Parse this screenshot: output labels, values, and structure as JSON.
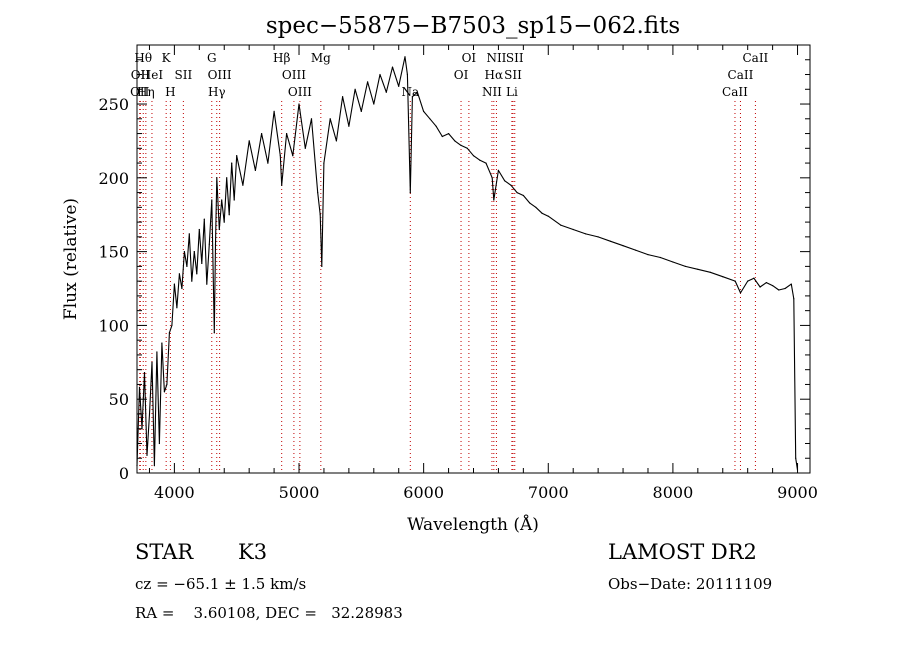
{
  "chart_data": {
    "type": "line",
    "title": "spec−55875−B7503_sp15−062.fits",
    "xlabel": "Wavelength (Å)",
    "ylabel": "Flux (relative)",
    "xlim": [
      3700,
      9100
    ],
    "ylim": [
      0,
      290
    ],
    "x_ticks": [
      4000,
      5000,
      6000,
      7000,
      8000,
      9000
    ],
    "y_ticks": [
      0,
      50,
      100,
      150,
      200,
      250
    ],
    "grid": false,
    "series": [
      {
        "color": "#000000",
        "x": [
          3700,
          3720,
          3740,
          3760,
          3780,
          3800,
          3820,
          3840,
          3860,
          3880,
          3900,
          3920,
          3940,
          3960,
          3980,
          4000,
          4020,
          4040,
          4060,
          4080,
          4100,
          4120,
          4140,
          4160,
          4180,
          4200,
          4220,
          4240,
          4260,
          4280,
          4300,
          4320,
          4330,
          4340,
          4360,
          4380,
          4400,
          4420,
          4440,
          4460,
          4480,
          4500,
          4550,
          4600,
          4650,
          4700,
          4750,
          4800,
          4850,
          4861,
          4900,
          4950,
          5000,
          5050,
          5100,
          5150,
          5170,
          5183,
          5200,
          5250,
          5300,
          5350,
          5400,
          5450,
          5500,
          5550,
          5600,
          5650,
          5700,
          5750,
          5800,
          5850,
          5870,
          5893,
          5910,
          5950,
          6000,
          6050,
          6100,
          6150,
          6200,
          6250,
          6300,
          6350,
          6400,
          6450,
          6500,
          6550,
          6563,
          6600,
          6650,
          6700,
          6750,
          6800,
          6850,
          6900,
          6950,
          7000,
          7100,
          7200,
          7300,
          7400,
          7500,
          7600,
          7700,
          7800,
          7900,
          8000,
          8100,
          8200,
          8300,
          8400,
          8500,
          8542,
          8600,
          8650,
          8700,
          8750,
          8800,
          8850,
          8900,
          8950,
          8970,
          8985,
          9000
        ],
        "y": [
          5,
          58,
          30,
          68,
          12,
          40,
          75,
          5,
          82,
          20,
          88,
          55,
          60,
          95,
          100,
          128,
          112,
          135,
          125,
          150,
          140,
          162,
          130,
          150,
          135,
          165,
          142,
          172,
          128,
          155,
          185,
          95,
          155,
          200,
          165,
          185,
          170,
          200,
          175,
          210,
          185,
          215,
          195,
          225,
          205,
          230,
          210,
          245,
          215,
          195,
          230,
          215,
          250,
          220,
          240,
          190,
          175,
          140,
          210,
          240,
          225,
          255,
          235,
          260,
          245,
          265,
          250,
          270,
          258,
          275,
          262,
          282,
          270,
          190,
          255,
          258,
          245,
          240,
          235,
          228,
          230,
          225,
          222,
          220,
          215,
          212,
          210,
          200,
          185,
          205,
          198,
          195,
          190,
          188,
          183,
          180,
          176,
          174,
          168,
          165,
          162,
          160,
          157,
          154,
          151,
          148,
          146,
          143,
          140,
          138,
          136,
          133,
          130,
          122,
          130,
          132,
          126,
          129,
          127,
          124,
          125,
          128,
          118,
          10,
          2
        ]
      }
    ],
    "line_labels": [
      {
        "wavelength": 3722,
        "labels": [
          "OII"
        ],
        "row": 2
      },
      {
        "wavelength": 3727,
        "labels": [
          "OII"
        ],
        "row": 1
      },
      {
        "wavelength": 3750,
        "labels": [
          "Hθ"
        ],
        "row": 0
      },
      {
        "wavelength": 3771,
        "labels": [
          "Hη"
        ],
        "row": 2
      },
      {
        "wavelength": 3820,
        "labels": [
          "HeI"
        ],
        "row": 1
      },
      {
        "wavelength": 3934,
        "labels": [
          "K"
        ],
        "row": 0
      },
      {
        "wavelength": 3968,
        "labels": [
          "H"
        ],
        "row": 2
      },
      {
        "wavelength": 4072,
        "labels": [
          "SII"
        ],
        "row": 1
      },
      {
        "wavelength": 4300,
        "labels": [
          "G"
        ],
        "row": 0
      },
      {
        "wavelength": 4340,
        "labels": [
          "Hγ"
        ],
        "row": 2
      },
      {
        "wavelength": 4363,
        "labels": [
          "OIII"
        ],
        "row": 1
      },
      {
        "wavelength": 4861,
        "labels": [
          "Hβ"
        ],
        "row": 0
      },
      {
        "wavelength": 4959,
        "labels": [
          "OIII"
        ],
        "row": 1
      },
      {
        "wavelength": 5007,
        "labels": [
          "OIII"
        ],
        "row": 2
      },
      {
        "wavelength": 5175,
        "labels": [
          "Mg"
        ],
        "row": 0
      },
      {
        "wavelength": 5893,
        "labels": [
          "Na"
        ],
        "row": 2
      },
      {
        "wavelength": 6300,
        "labels": [
          "OI"
        ],
        "row": 1
      },
      {
        "wavelength": 6363,
        "labels": [
          "OI"
        ],
        "row": 0
      },
      {
        "wavelength": 6548,
        "labels": [
          "NII"
        ],
        "row": 2
      },
      {
        "wavelength": 6563,
        "labels": [
          "Hα"
        ],
        "row": 1
      },
      {
        "wavelength": 6584,
        "labels": [
          "NII"
        ],
        "row": 0
      },
      {
        "wavelength": 6708,
        "labels": [
          "Li"
        ],
        "row": 2
      },
      {
        "wavelength": 6717,
        "labels": [
          "SII"
        ],
        "row": 1
      },
      {
        "wavelength": 6731,
        "labels": [
          "SII"
        ],
        "row": 0
      },
      {
        "wavelength": 8498,
        "labels": [
          "CaII"
        ],
        "row": 2
      },
      {
        "wavelength": 8542,
        "labels": [
          "CaII"
        ],
        "row": 1
      },
      {
        "wavelength": 8662,
        "labels": [
          "CaII"
        ],
        "row": 0
      }
    ],
    "line_marker_color": "#c00000"
  },
  "info": {
    "class_label": "STAR",
    "subclass": "K3",
    "survey": "LAMOST DR2",
    "cz_text": "cz = −65.1 ± 1.5 km/s",
    "obs_date_text": "Obs−Date: 20111109",
    "coords_text": "RA =    3.60108, DEC =   32.28983"
  }
}
